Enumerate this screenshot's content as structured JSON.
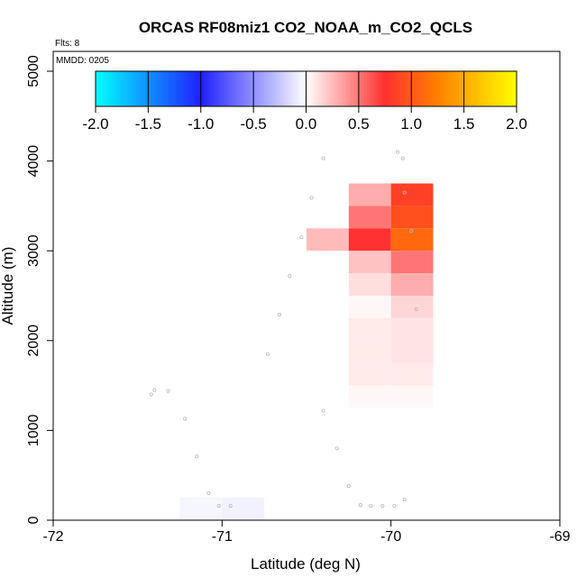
{
  "chart_data": {
    "type": "heatmap",
    "title": "ORCAS RF08miz1 CO2_NOAA_m_CO2_QCLS",
    "xlabel": "Latitude (deg N)",
    "ylabel": "Altitude (m)",
    "xlim": [
      -72,
      -69
    ],
    "ylim": [
      0,
      5200
    ],
    "x_ticks": [
      -72,
      -71,
      -70,
      -69
    ],
    "x_tick_labels": [
      "-72",
      "-71",
      "-70",
      "-69"
    ],
    "y_ticks": [
      0,
      1000,
      2000,
      3000,
      4000,
      5000
    ],
    "y_tick_labels": [
      "0",
      "1000",
      "2000",
      "3000",
      "4000",
      "5000"
    ],
    "flights_label": "Flts: 8",
    "date_label": "MMDD: 0205",
    "colorbar": {
      "range": [
        -2.0,
        2.0
      ],
      "ticks": [
        -2.0,
        -1.5,
        -1.0,
        -0.5,
        0.0,
        0.5,
        1.0,
        1.5,
        2.0
      ],
      "tick_labels": [
        "-2.0",
        "-1.5",
        "-1.0",
        "-0.5",
        "0.0",
        "0.5",
        "1.0",
        "1.5",
        "2.0"
      ],
      "color_stops": [
        {
          "v": -2.0,
          "c": "#00ffff"
        },
        {
          "v": -1.0,
          "c": "#2020ff"
        },
        {
          "v": 0.0,
          "c": "#ffffff"
        },
        {
          "v": 0.75,
          "c": "#ff3030"
        },
        {
          "v": 1.25,
          "c": "#ff8000"
        },
        {
          "v": 2.0,
          "c": "#ffff00"
        }
      ]
    },
    "cells": [
      {
        "x0": -71.25,
        "x1": -71.0,
        "y0": 0,
        "y1": 250,
        "value": -0.04
      },
      {
        "x0": -71.0,
        "x1": -70.75,
        "y0": 0,
        "y1": 250,
        "value": -0.06
      },
      {
        "x0": -70.5,
        "x1": -70.25,
        "y0": 3000,
        "y1": 3250,
        "value": 0.25
      },
      {
        "x0": -70.25,
        "x1": -70.0,
        "y0": 3500,
        "y1": 3750,
        "value": 0.3
      },
      {
        "x0": -70.0,
        "x1": -69.75,
        "y0": 3500,
        "y1": 3750,
        "value": 0.85
      },
      {
        "x0": -70.25,
        "x1": -70.0,
        "y0": 3250,
        "y1": 3500,
        "value": 0.5
      },
      {
        "x0": -70.0,
        "x1": -69.75,
        "y0": 3250,
        "y1": 3500,
        "value": 0.95
      },
      {
        "x0": -70.25,
        "x1": -70.0,
        "y0": 3000,
        "y1": 3250,
        "value": 0.75
      },
      {
        "x0": -70.0,
        "x1": -69.75,
        "y0": 3000,
        "y1": 3250,
        "value": 1.1
      },
      {
        "x0": -70.25,
        "x1": -70.0,
        "y0": 2750,
        "y1": 3000,
        "value": 0.22
      },
      {
        "x0": -70.0,
        "x1": -69.75,
        "y0": 2750,
        "y1": 3000,
        "value": 0.5
      },
      {
        "x0": -70.25,
        "x1": -70.0,
        "y0": 2500,
        "y1": 2750,
        "value": 0.12
      },
      {
        "x0": -70.0,
        "x1": -69.75,
        "y0": 2500,
        "y1": 2750,
        "value": 0.3
      },
      {
        "x0": -70.25,
        "x1": -70.0,
        "y0": 2250,
        "y1": 2500,
        "value": 0.03
      },
      {
        "x0": -70.0,
        "x1": -69.75,
        "y0": 2250,
        "y1": 2500,
        "value": 0.15
      },
      {
        "x0": -70.25,
        "x1": -70.0,
        "y0": 2000,
        "y1": 2250,
        "value": 0.08
      },
      {
        "x0": -70.0,
        "x1": -69.75,
        "y0": 2000,
        "y1": 2250,
        "value": 0.1
      },
      {
        "x0": -70.25,
        "x1": -70.0,
        "y0": 1750,
        "y1": 2000,
        "value": 0.08
      },
      {
        "x0": -70.0,
        "x1": -69.75,
        "y0": 1750,
        "y1": 2000,
        "value": 0.1
      },
      {
        "x0": -70.25,
        "x1": -70.0,
        "y0": 1500,
        "y1": 1750,
        "value": 0.08
      },
      {
        "x0": -70.0,
        "x1": -69.75,
        "y0": 1500,
        "y1": 1750,
        "value": 0.08
      },
      {
        "x0": -70.25,
        "x1": -70.0,
        "y0": 1250,
        "y1": 1500,
        "value": 0.03
      },
      {
        "x0": -70.0,
        "x1": -69.75,
        "y0": 1250,
        "y1": 1500,
        "value": 0.03
      }
    ],
    "track_points": [
      {
        "x": -71.42,
        "y": 1400
      },
      {
        "x": -71.4,
        "y": 1450
      },
      {
        "x": -71.32,
        "y": 1440
      },
      {
        "x": -71.22,
        "y": 1130
      },
      {
        "x": -71.15,
        "y": 710
      },
      {
        "x": -71.08,
        "y": 300
      },
      {
        "x": -71.02,
        "y": 160
      },
      {
        "x": -70.95,
        "y": 160
      },
      {
        "x": -70.73,
        "y": 1850
      },
      {
        "x": -70.66,
        "y": 2290
      },
      {
        "x": -70.6,
        "y": 2720
      },
      {
        "x": -70.53,
        "y": 3150
      },
      {
        "x": -70.47,
        "y": 3590
      },
      {
        "x": -70.4,
        "y": 4030
      },
      {
        "x": -70.4,
        "y": 1220
      },
      {
        "x": -70.32,
        "y": 800
      },
      {
        "x": -70.25,
        "y": 380
      },
      {
        "x": -70.18,
        "y": 170
      },
      {
        "x": -70.12,
        "y": 160
      },
      {
        "x": -70.05,
        "y": 160
      },
      {
        "x": -69.98,
        "y": 160
      },
      {
        "x": -69.92,
        "y": 230
      },
      {
        "x": -69.85,
        "y": 2350
      },
      {
        "x": -69.88,
        "y": 3220
      },
      {
        "x": -69.92,
        "y": 3650
      },
      {
        "x": -69.93,
        "y": 4030
      },
      {
        "x": -69.96,
        "y": 4100
      }
    ]
  }
}
